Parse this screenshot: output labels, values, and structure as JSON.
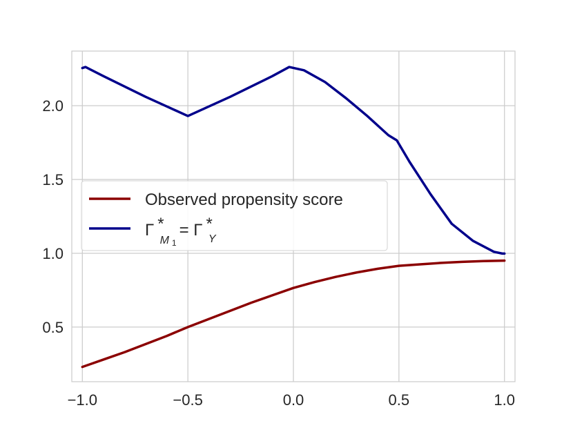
{
  "chart_data": {
    "type": "line",
    "xlim": [
      -1.05,
      1.05
    ],
    "ylim": [
      0.13,
      2.37
    ],
    "xticks": [
      -1.0,
      -0.5,
      0.0,
      0.5,
      1.0
    ],
    "xtick_labels": [
      "−1.0",
      "−0.5",
      "0.0",
      "0.5",
      "1.0"
    ],
    "yticks": [
      0.5,
      1.0,
      1.5,
      2.0
    ],
    "ytick_labels": [
      "0.5",
      "1.0",
      "1.5",
      "2.0"
    ],
    "grid": true,
    "legend_position": "center-left",
    "series": [
      {
        "name": "Observed propensity score",
        "color": "#8b0000",
        "x": [
          -1.0,
          -0.9,
          -0.8,
          -0.7,
          -0.6,
          -0.5,
          -0.4,
          -0.3,
          -0.2,
          -0.1,
          0.0,
          0.1,
          0.2,
          0.3,
          0.4,
          0.5,
          0.6,
          0.7,
          0.8,
          0.9,
          1.0
        ],
        "y": [
          0.23,
          0.28,
          0.33,
          0.385,
          0.44,
          0.5,
          0.555,
          0.61,
          0.665,
          0.715,
          0.765,
          0.805,
          0.84,
          0.87,
          0.895,
          0.915,
          0.925,
          0.935,
          0.942,
          0.947,
          0.95
        ]
      },
      {
        "name": "Γ*_M1 = Γ*_Y",
        "label_parts": {
          "gamma": "Γ",
          "star": "*",
          "sub_left": "M",
          "sub_left_index": "1",
          "equals": " = ",
          "sub_right": "Y"
        },
        "color": "#00008b",
        "x": [
          -1.0,
          -0.985,
          -0.9,
          -0.8,
          -0.7,
          -0.6,
          -0.5,
          -0.4,
          -0.3,
          -0.2,
          -0.1,
          -0.02,
          0.05,
          0.15,
          0.25,
          0.35,
          0.45,
          0.49,
          0.55,
          0.65,
          0.75,
          0.85,
          0.95,
          0.99,
          1.0
        ],
        "y": [
          2.255,
          2.262,
          2.2,
          2.13,
          2.06,
          1.995,
          1.93,
          1.995,
          2.06,
          2.13,
          2.2,
          2.262,
          2.24,
          2.16,
          2.05,
          1.93,
          1.8,
          1.765,
          1.62,
          1.4,
          1.2,
          1.085,
          1.01,
          0.998,
          0.998
        ]
      }
    ]
  }
}
